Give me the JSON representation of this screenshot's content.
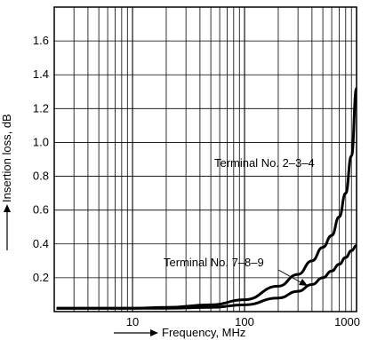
{
  "chart_data": {
    "type": "line",
    "xlabel": "Frequency, MHz",
    "ylabel": "Insertion loss, dB",
    "xscale": "log",
    "xlim": [
      2,
      1000
    ],
    "ylim": [
      0,
      1.8
    ],
    "grid": true,
    "xticks": [
      {
        "value": 10,
        "label": "10"
      },
      {
        "value": 100,
        "label": "100"
      },
      {
        "value": 1000,
        "label": "1000"
      }
    ],
    "yticks": [
      {
        "value": 0.2,
        "label": "0.2"
      },
      {
        "value": 0.4,
        "label": "0.4"
      },
      {
        "value": 0.6,
        "label": "0.6"
      },
      {
        "value": 0.8,
        "label": "0.8"
      },
      {
        "value": 1.0,
        "label": "1.0"
      },
      {
        "value": 1.2,
        "label": "1.2"
      },
      {
        "value": 1.4,
        "label": "1.4"
      },
      {
        "value": 1.6,
        "label": "1.6"
      }
    ],
    "series": [
      {
        "name": "Terminal No. 2–3–4",
        "color": "#000000",
        "points": [
          [
            2.1,
            0.02
          ],
          [
            5,
            0.02
          ],
          [
            10,
            0.02
          ],
          [
            20,
            0.025
          ],
          [
            50,
            0.04
          ],
          [
            100,
            0.07
          ],
          [
            200,
            0.15
          ],
          [
            300,
            0.22
          ],
          [
            400,
            0.3
          ],
          [
            500,
            0.38
          ],
          [
            600,
            0.45
          ],
          [
            700,
            0.56
          ],
          [
            800,
            0.7
          ],
          [
            900,
            0.92
          ],
          [
            1000,
            1.32
          ]
        ]
      },
      {
        "name": "Terminal No. 7–8–9",
        "color": "#000000",
        "points": [
          [
            2.1,
            0.02
          ],
          [
            10,
            0.02
          ],
          [
            20,
            0.02
          ],
          [
            50,
            0.025
          ],
          [
            100,
            0.04
          ],
          [
            200,
            0.08
          ],
          [
            300,
            0.12
          ],
          [
            400,
            0.16
          ],
          [
            500,
            0.2
          ],
          [
            600,
            0.24
          ],
          [
            700,
            0.28
          ],
          [
            800,
            0.32
          ],
          [
            900,
            0.36
          ],
          [
            1000,
            0.39
          ]
        ]
      }
    ]
  }
}
